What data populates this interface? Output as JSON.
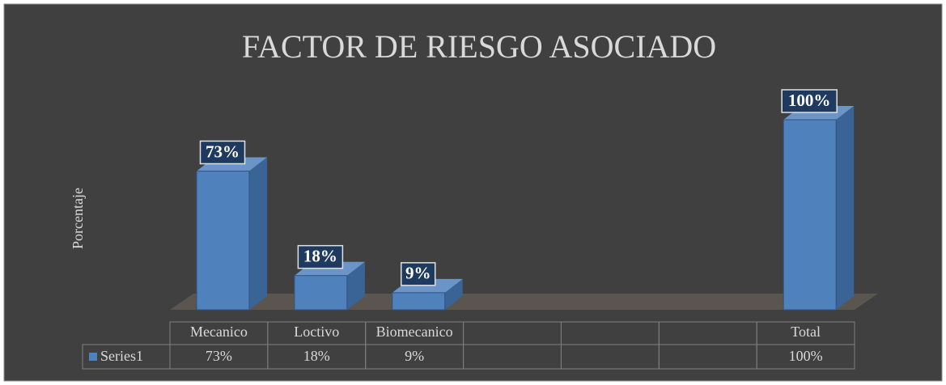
{
  "chart_data": {
    "type": "bar3d",
    "title": "FACTOR DE RIESGO ASOCIADO",
    "y_label": "Porcentaje",
    "categories": [
      "Mecanico",
      "Loctivo",
      "Biomecanico",
      null,
      null,
      null,
      "Total"
    ],
    "series": [
      {
        "name": "Series1",
        "color": "#4f81bd",
        "values": [
          73,
          18,
          9,
          null,
          null,
          null,
          100
        ],
        "value_labels": [
          "73%",
          "18%",
          "9%",
          null,
          null,
          null,
          "100%"
        ]
      }
    ]
  }
}
